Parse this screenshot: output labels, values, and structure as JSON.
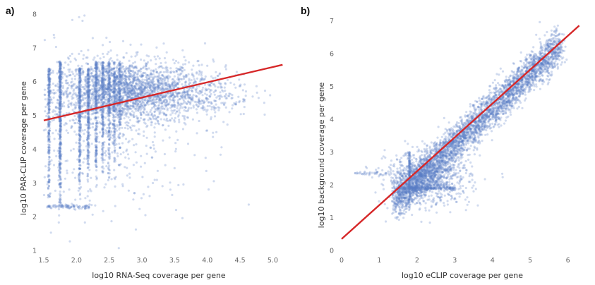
{
  "chart_data": [
    {
      "type": "scatter",
      "panel_label": "a)",
      "xlabel": "log10 RNA-Seq coverage per gene",
      "ylabel": "log10 PAR-CLIP coverage per gene",
      "xlim": [
        1.5,
        5.2
      ],
      "ylim": [
        1,
        8
      ],
      "xticks": [
        "1.5",
        "2.0",
        "2.5",
        "3.0",
        "3.5",
        "4.0",
        "4.5",
        "5.0"
      ],
      "yticks": [
        "1",
        "2",
        "3",
        "4",
        "5",
        "6",
        "7",
        "8"
      ],
      "grid": false,
      "point_color": "#5b7fc4",
      "fit_color": "#d62728",
      "fit_line": {
        "x": [
          1.5,
          5.15
        ],
        "y": [
          4.85,
          6.5
        ]
      },
      "point_clusters": [
        {
          "x_center": 2.75,
          "y_center": 5.7,
          "x_spread": 0.55,
          "y_spread": 0.45,
          "count": 2200
        },
        {
          "x_center": 3.8,
          "y_center": 5.7,
          "x_spread": 0.45,
          "y_spread": 0.4,
          "count": 350
        },
        {
          "x_center": 2.4,
          "y_center": 4.6,
          "x_spread": 0.7,
          "y_spread": 1.3,
          "count": 500
        }
      ],
      "vertical_bands": [
        {
          "x": 1.58,
          "y_range": [
            2.2,
            6.4
          ],
          "count": 260
        },
        {
          "x": 1.75,
          "y_range": [
            1.8,
            6.6
          ],
          "count": 420
        },
        {
          "x": 2.05,
          "y_range": [
            2.4,
            6.4
          ],
          "count": 300
        },
        {
          "x": 2.18,
          "y_range": [
            2.6,
            6.4
          ],
          "count": 240
        },
        {
          "x": 2.3,
          "y_range": [
            2.6,
            6.6
          ],
          "count": 220
        },
        {
          "x": 2.4,
          "y_range": [
            2.8,
            6.6
          ],
          "count": 190
        },
        {
          "x": 2.5,
          "y_range": [
            3.0,
            6.6
          ],
          "count": 160
        },
        {
          "x": 2.58,
          "y_range": [
            3.2,
            6.6
          ],
          "count": 130
        },
        {
          "x": 2.66,
          "y_range": [
            3.4,
            6.6
          ],
          "count": 110
        }
      ],
      "horizontal_bands": [
        {
          "y": 2.3,
          "x_range": [
            1.55,
            2.2
          ],
          "count": 90
        }
      ]
    },
    {
      "type": "scatter",
      "panel_label": "b)",
      "xlabel": "log10 eCLIP coverage per gene",
      "ylabel": "log10 background coverage per gene",
      "xlim": [
        0,
        6.4
      ],
      "ylim": [
        0,
        7.2
      ],
      "xticks": [
        "0",
        "1",
        "2",
        "3",
        "4",
        "5",
        "6"
      ],
      "yticks": [
        "0",
        "1",
        "2",
        "3",
        "4",
        "5",
        "6",
        "7"
      ],
      "grid": false,
      "point_color": "#5b7fc4",
      "fit_color": "#d62728",
      "fit_line": {
        "x": [
          0,
          6.3
        ],
        "y": [
          0.35,
          6.85
        ]
      },
      "point_clusters": [
        {
          "along_x_range": [
            1.4,
            5.8
          ],
          "trend_intercept": 0.0,
          "trend_slope": 1.08,
          "perp_spread": 0.28,
          "count": 3800
        },
        {
          "x_center": 2.3,
          "y_center": 2.2,
          "x_spread": 0.55,
          "y_spread": 0.4,
          "count": 900
        }
      ],
      "horizontal_bands": [
        {
          "y": 1.9,
          "x_range": [
            1.5,
            3.0
          ],
          "count": 220
        },
        {
          "y": 2.35,
          "x_range": [
            0.3,
            1.6
          ],
          "count": 45
        }
      ],
      "vertical_bands": [
        {
          "x": 1.8,
          "y_range": [
            1.2,
            3.0
          ],
          "count": 120
        }
      ]
    }
  ]
}
